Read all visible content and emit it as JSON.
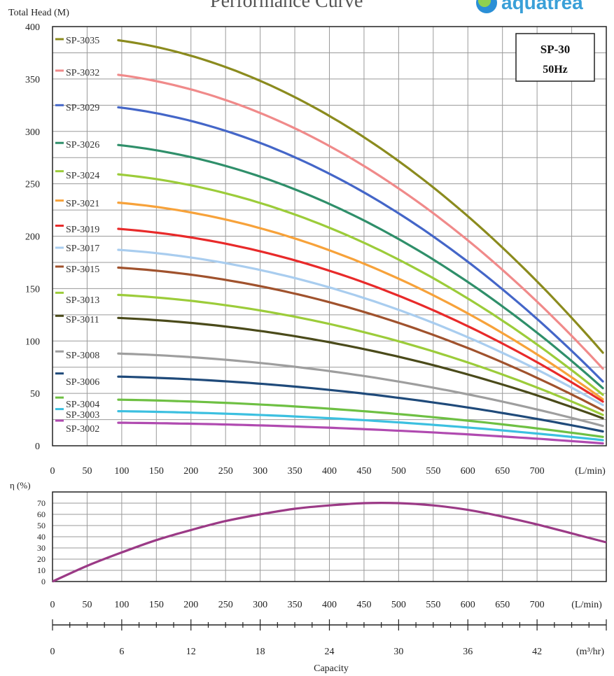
{
  "header": {
    "title": "Performance Curve",
    "logo_text": "aquatrea"
  },
  "colors": {
    "grid": "#9a9a9a",
    "frame": "#222222",
    "eff": "#9b3a86"
  },
  "chart_data": [
    {
      "type": "line",
      "ylabel": "Total Head (M)",
      "x_unit": "(L/min)",
      "xlim": [
        0,
        800
      ],
      "ylim": [
        0,
        400
      ],
      "xticks": [
        0,
        50,
        100,
        150,
        200,
        250,
        300,
        350,
        400,
        450,
        500,
        550,
        600,
        650,
        700
      ],
      "yticks": [
        0,
        50,
        100,
        150,
        200,
        250,
        300,
        350,
        400
      ],
      "grid": true,
      "legend_box": {
        "line1": "SP-30",
        "line2": "50Hz",
        "position": "top-right"
      },
      "curve_x_start": 95,
      "curve_x_end": 800,
      "series": [
        {
          "name": "SP-3035",
          "color": "#8b8b1e",
          "shutoff": 388,
          "start": 387,
          "end": 85
        },
        {
          "name": "SP-3032",
          "color": "#f08a8a",
          "shutoff": 358,
          "start": 354,
          "end": 70
        },
        {
          "name": "SP-3029",
          "color": "#4466c8",
          "shutoff": 325,
          "start": 323,
          "end": 58
        },
        {
          "name": "SP-3026",
          "color": "#2f8f6a",
          "shutoff": 289,
          "start": 287,
          "end": 52
        },
        {
          "name": "SP-3024",
          "color": "#9ccc3a",
          "shutoff": 262,
          "start": 259,
          "end": 46
        },
        {
          "name": "SP-3021",
          "color": "#f7a23a",
          "shutoff": 234,
          "start": 232,
          "end": 42
        },
        {
          "name": "SP-3019",
          "color": "#e82a2a",
          "shutoff": 210,
          "start": 207,
          "end": 40
        },
        {
          "name": "SP-3017",
          "color": "#a9cdef",
          "shutoff": 189,
          "start": 187,
          "end": 37
        },
        {
          "name": "SP-3015",
          "color": "#a0522d",
          "shutoff": 171,
          "start": 170,
          "end": 32
        },
        {
          "name": "SP-3013",
          "color": "#9ccc3a",
          "shutoff": 146,
          "start": 144,
          "end": 28
        },
        {
          "name": "SP-3011",
          "color": "#4a4a1a",
          "shutoff": 124,
          "start": 122,
          "end": 25
        },
        {
          "name": "SP-3008",
          "color": "#9e9e9e",
          "shutoff": 90,
          "start": 88,
          "end": 18
        },
        {
          "name": "SP-3006",
          "color": "#1f4a7a",
          "shutoff": 69,
          "start": 66,
          "end": 13
        },
        {
          "name": "SP-3004",
          "color": "#6ec043",
          "shutoff": 46,
          "start": 44,
          "end": 8
        },
        {
          "name": "SP-3003",
          "color": "#3cc0e0",
          "shutoff": 35,
          "start": 33,
          "end": 5
        },
        {
          "name": "SP-3002",
          "color": "#b04ab0",
          "shutoff": 24,
          "start": 22,
          "end": 2
        }
      ]
    },
    {
      "type": "line",
      "ylabel": "η (%)",
      "x_unit": "(L/min)",
      "xlim": [
        0,
        800
      ],
      "ylim": [
        0,
        80
      ],
      "yticks": [
        0,
        10,
        20,
        30,
        40,
        50,
        60,
        70
      ],
      "xticks": [
        0,
        50,
        100,
        150,
        200,
        250,
        300,
        350,
        400,
        450,
        500,
        550,
        600,
        650,
        700
      ],
      "grid": true,
      "series": [
        {
          "name": "efficiency",
          "x": [
            0,
            50,
            100,
            150,
            200,
            250,
            300,
            350,
            400,
            450,
            500,
            550,
            600,
            650,
            700,
            750,
            800
          ],
          "y": [
            0,
            14,
            26,
            37,
            46,
            54,
            60,
            65,
            68,
            70,
            70,
            68,
            64,
            58,
            51,
            43,
            35
          ]
        }
      ]
    },
    {
      "type": "axis",
      "label": "Capacity",
      "unit": "(m³/hr)",
      "xlim": [
        0,
        48
      ],
      "ticks": [
        0,
        6,
        12,
        18,
        24,
        30,
        36,
        42
      ]
    }
  ]
}
